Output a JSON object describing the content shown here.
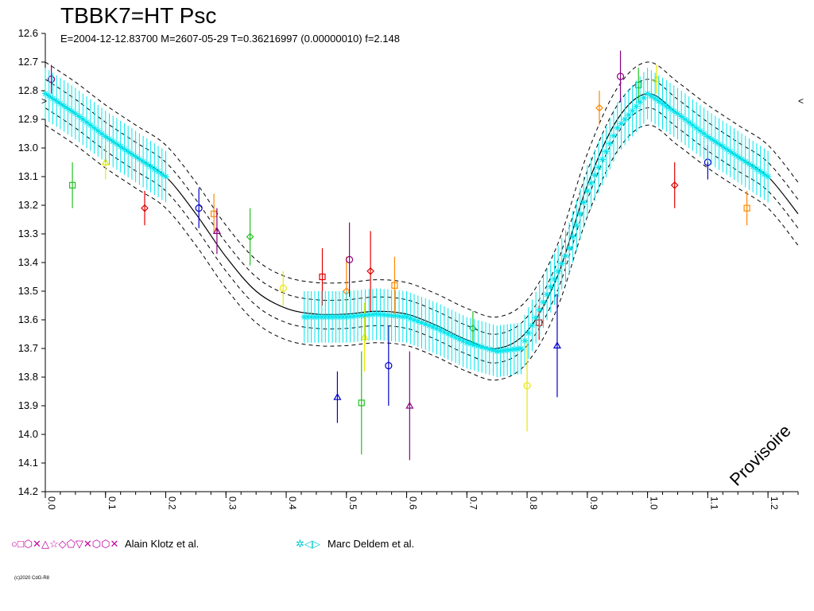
{
  "chart_data": {
    "type": "scatter",
    "title": "TBBK7=HT Psc",
    "subtitle": "E=2004-12-12.83700    M=2607-05-29    T=0.36216997 (0.00000010)    f=2.148",
    "ylim": [
      12.6,
      14.2
    ],
    "y_inverted": true,
    "xlim": [
      0.0,
      1.25
    ],
    "y_ticks": [
      "12.6",
      "12.7",
      "12.8",
      "12.9",
      "13.0",
      "13.1",
      "13.2",
      "13.3",
      "13.4",
      "13.5",
      "13.6",
      "13.7",
      "13.8",
      "13.9",
      "14.0",
      "14.1",
      "14.2"
    ],
    "x_ticks": [
      "0.0",
      "0.1",
      "0.2",
      "0.3",
      "0.4",
      "0.5",
      "0.6",
      "0.7",
      "0.8",
      "0.9",
      "1.0",
      "1.1",
      "1.2"
    ],
    "model_curve": {
      "phase": [
        0.0,
        0.05,
        0.1,
        0.15,
        0.2,
        0.25,
        0.3,
        0.35,
        0.4,
        0.45,
        0.5,
        0.55,
        0.6,
        0.65,
        0.7,
        0.75,
        0.8,
        0.85,
        0.9,
        0.95,
        1.0,
        1.05,
        1.1,
        1.15,
        1.2,
        1.25
      ],
      "magnitude": [
        12.81,
        12.88,
        12.96,
        13.03,
        13.1,
        13.23,
        13.38,
        13.5,
        13.56,
        13.58,
        13.58,
        13.57,
        13.58,
        13.62,
        13.67,
        13.7,
        13.64,
        13.45,
        13.13,
        12.9,
        12.81,
        12.88,
        12.96,
        13.03,
        13.1,
        13.23
      ],
      "envelope_offsets": [
        -0.11,
        -0.05,
        0.05,
        0.11
      ]
    },
    "series": [
      {
        "name": "Alain Klotz et al.",
        "color": "#7f007f",
        "points": [
          {
            "x": 0.01,
            "y": 12.76,
            "err": 0.05
          },
          {
            "x": 0.045,
            "y": 13.13,
            "err": 0.08
          },
          {
            "x": 0.1,
            "y": 13.05,
            "err": 0.06
          },
          {
            "x": 0.165,
            "y": 13.21,
            "err": 0.06
          },
          {
            "x": 0.255,
            "y": 13.21,
            "err": 0.07
          },
          {
            "x": 0.28,
            "y": 13.23,
            "err": 0.07
          },
          {
            "x": 0.285,
            "y": 13.29,
            "err": 0.08
          },
          {
            "x": 0.34,
            "y": 13.31,
            "err": 0.1
          },
          {
            "x": 0.395,
            "y": 13.49,
            "err": 0.06
          },
          {
            "x": 0.46,
            "y": 13.45,
            "err": 0.1
          },
          {
            "x": 0.485,
            "y": 13.87,
            "err": 0.09
          },
          {
            "x": 0.5,
            "y": 13.5,
            "err": 0.12
          },
          {
            "x": 0.505,
            "y": 13.39,
            "err": 0.13
          },
          {
            "x": 0.525,
            "y": 13.89,
            "err": 0.18
          },
          {
            "x": 0.53,
            "y": 13.66,
            "err": 0.12
          },
          {
            "x": 0.54,
            "y": 13.43,
            "err": 0.14
          },
          {
            "x": 0.57,
            "y": 13.76,
            "err": 0.14
          },
          {
            "x": 0.58,
            "y": 13.48,
            "err": 0.1
          },
          {
            "x": 0.605,
            "y": 13.9,
            "err": 0.19
          },
          {
            "x": 0.71,
            "y": 13.63,
            "err": 0.06
          },
          {
            "x": 0.8,
            "y": 13.83,
            "err": 0.16
          },
          {
            "x": 0.82,
            "y": 13.61,
            "err": 0.06
          },
          {
            "x": 0.85,
            "y": 13.69,
            "err": 0.18
          },
          {
            "x": 0.92,
            "y": 12.86,
            "err": 0.06
          },
          {
            "x": 0.955,
            "y": 12.75,
            "err": 0.09
          },
          {
            "x": 0.985,
            "y": 12.78,
            "err": 0.06
          },
          {
            "x": 1.015,
            "y": 12.76,
            "err": 0.05
          },
          {
            "x": 1.045,
            "y": 13.13,
            "err": 0.08
          },
          {
            "x": 1.1,
            "y": 13.05,
            "err": 0.06
          },
          {
            "x": 1.165,
            "y": 13.21,
            "err": 0.06
          }
        ]
      },
      {
        "name": "Marc Deldem et al.",
        "color": "#00e5ee",
        "points": [
          {
            "x": 0.0,
            "y": 12.81,
            "err": 0.09
          },
          {
            "x": 0.05,
            "y": 12.88,
            "err": 0.09
          },
          {
            "x": 0.1,
            "y": 12.96,
            "err": 0.09
          },
          {
            "x": 0.15,
            "y": 13.03,
            "err": 0.09
          },
          {
            "x": 0.2,
            "y": 13.1,
            "err": 0.09
          },
          {
            "x": 0.43,
            "y": 13.59,
            "err": 0.09
          },
          {
            "x": 0.5,
            "y": 13.59,
            "err": 0.09
          },
          {
            "x": 0.55,
            "y": 13.58,
            "err": 0.09
          },
          {
            "x": 0.6,
            "y": 13.59,
            "err": 0.09
          },
          {
            "x": 0.65,
            "y": 13.63,
            "err": 0.09
          },
          {
            "x": 0.7,
            "y": 13.68,
            "err": 0.09
          },
          {
            "x": 0.75,
            "y": 13.71,
            "err": 0.09
          },
          {
            "x": 0.79,
            "y": 13.7,
            "err": 0.09
          },
          {
            "x": 0.87,
            "y": 13.35,
            "err": 0.09
          },
          {
            "x": 0.9,
            "y": 13.15,
            "err": 0.09
          },
          {
            "x": 0.95,
            "y": 12.93,
            "err": 0.09
          },
          {
            "x": 1.0,
            "y": 12.81,
            "err": 0.09
          },
          {
            "x": 1.05,
            "y": 12.88,
            "err": 0.09
          },
          {
            "x": 1.1,
            "y": 12.96,
            "err": 0.09
          },
          {
            "x": 1.15,
            "y": 13.03,
            "err": 0.09
          },
          {
            "x": 1.2,
            "y": 13.1,
            "err": 0.09
          }
        ]
      }
    ],
    "watermark": "Provisoire",
    "copyright": "(c)2020 CdG-R8",
    "grid": false,
    "legend_position": "bottom"
  },
  "legend": {
    "group1_label": "Alain Klotz et al.",
    "group2_label": "Marc Deldem et al.",
    "group1_symbols": "○□⬡✕△☆◇⬠▽✕⬡⬡✕",
    "group2_symbols": "✲◁▷"
  },
  "colors": {
    "axis": "#000000",
    "model": "#000000",
    "cyan": "#00e5ee",
    "magenta": "#8b0080",
    "green": "#22c022",
    "yellow": "#e8e800",
    "orange": "#ff8800",
    "red": "#e00000",
    "blue": "#0000cc"
  }
}
